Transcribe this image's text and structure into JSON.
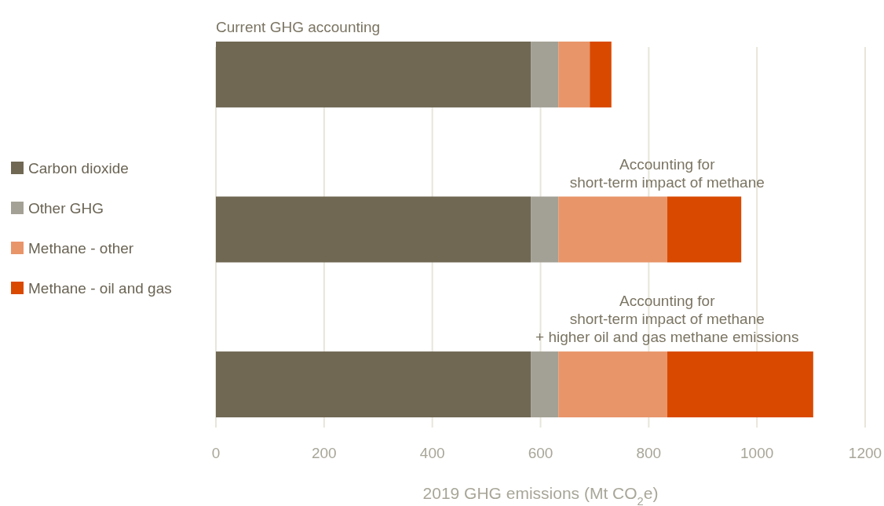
{
  "chart_data": {
    "type": "bar",
    "orientation": "horizontal",
    "stacked": true,
    "categories": [
      "Current GHG accounting",
      "Accounting for\nshort-term impact of methane",
      "Accounting for\nshort-term impact of methane\n+ higher oil and gas methane emissions"
    ],
    "series": [
      {
        "name": "Carbon dioxide",
        "color": "#706853",
        "values": [
          582,
          582,
          582
        ]
      },
      {
        "name": "Other GHG",
        "color": "#a3a195",
        "values": [
          51,
          51,
          51
        ]
      },
      {
        "name": "Methane - other",
        "color": "#e8956a",
        "values": [
          58,
          201,
          201
        ]
      },
      {
        "name": "Methane - oil and gas",
        "color": "#d94a00",
        "values": [
          40,
          137,
          270
        ]
      }
    ],
    "xlim": [
      0,
      1200
    ],
    "xticks": [
      0,
      200,
      400,
      600,
      800,
      1000,
      1200
    ],
    "xlabel": "2019 GHG emissions (Mt CO$_{2}$e)",
    "grid": "x",
    "legend": "left"
  }
}
